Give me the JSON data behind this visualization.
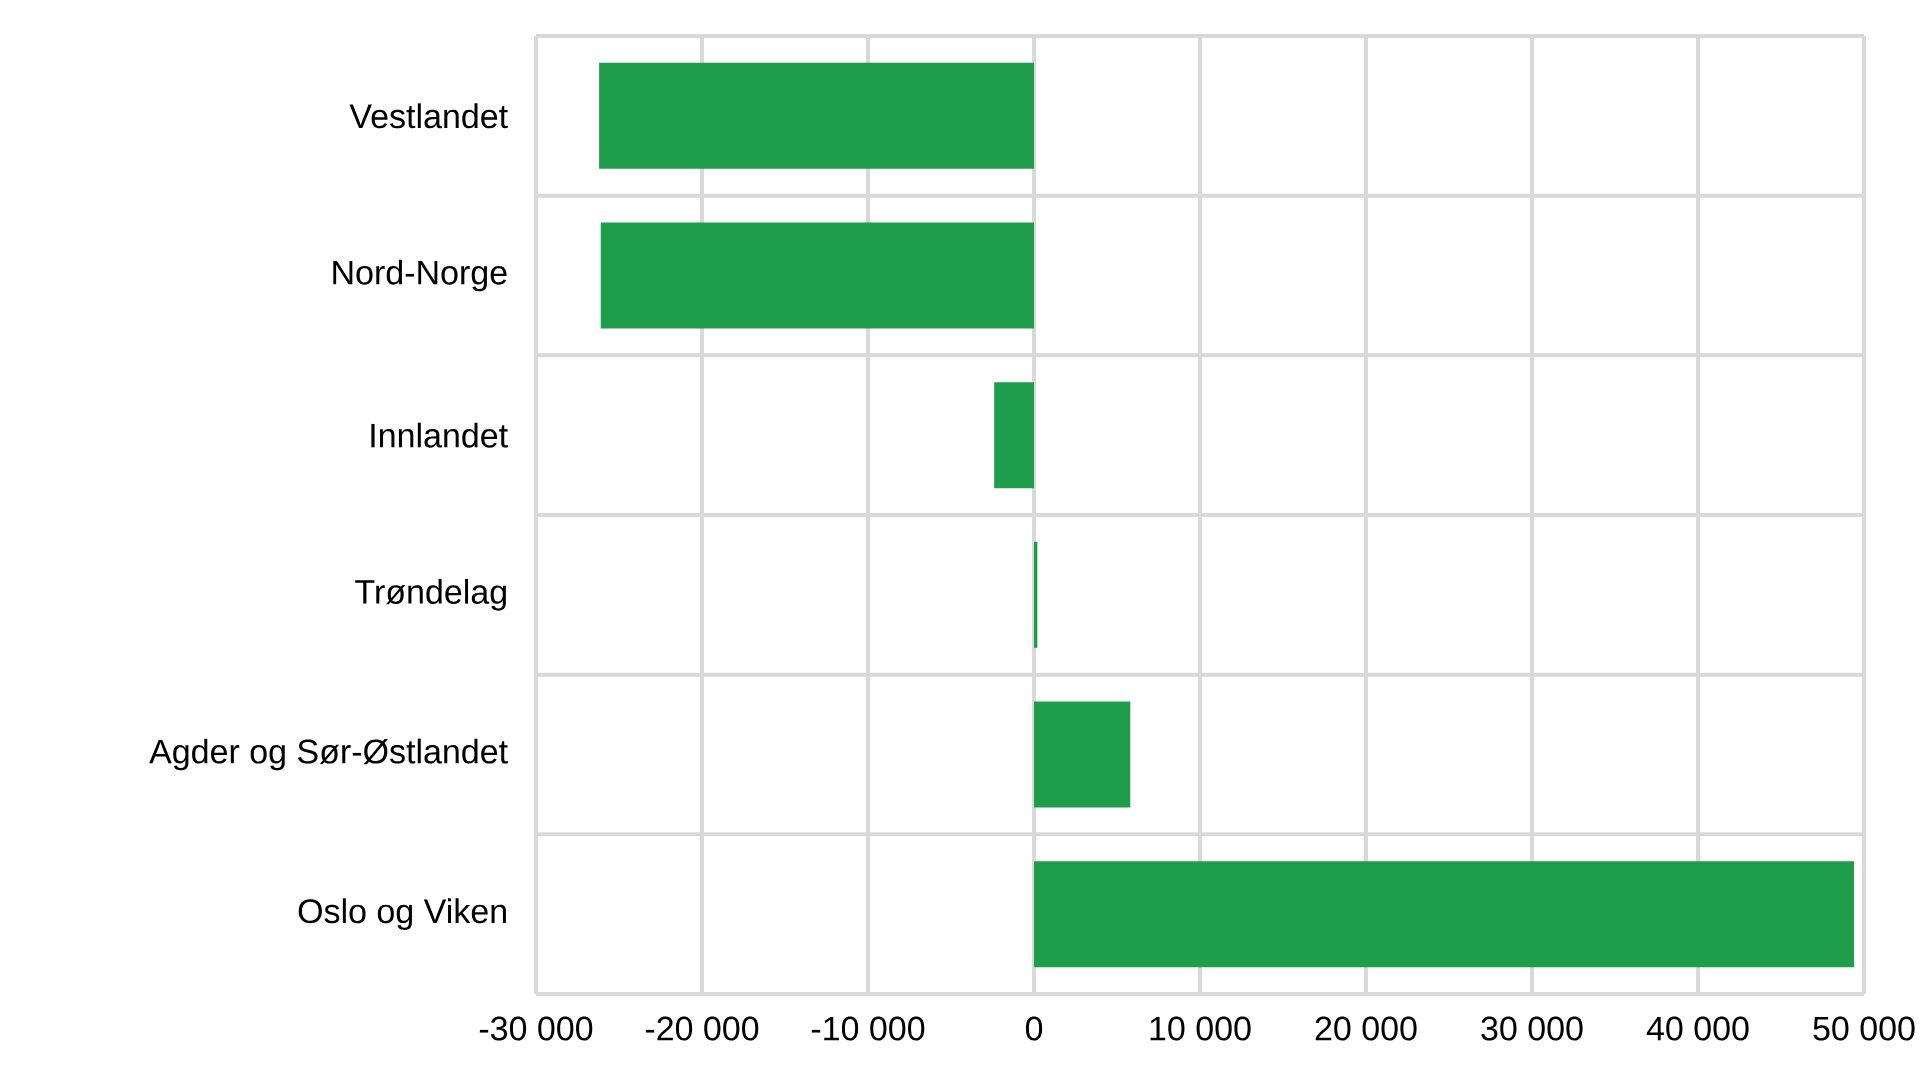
{
  "chart_data": {
    "type": "bar",
    "orientation": "horizontal",
    "categories": [
      "Vestlandet",
      "Nord-Norge",
      "Innlandet",
      "Trøndelag",
      "Agder og Sør-Østlandet",
      "Oslo og Viken"
    ],
    "values": [
      -26200,
      -26100,
      -2400,
      200,
      5800,
      49400
    ],
    "color": "#1e9e4a",
    "xlim": [
      -30000,
      50000
    ],
    "xticks": [
      {
        "value": -30000,
        "label": "-30 000"
      },
      {
        "value": -20000,
        "label": "-20 000"
      },
      {
        "value": -10000,
        "label": "-10 000"
      },
      0,
      {
        "value": 10000,
        "label": "10 000"
      },
      {
        "value": 20000,
        "label": "20 000"
      },
      {
        "value": 30000,
        "label": "30 000"
      },
      {
        "value": 40000,
        "label": "40 000"
      },
      {
        "value": 50000,
        "label": "50 000"
      }
    ],
    "grid": true
  }
}
